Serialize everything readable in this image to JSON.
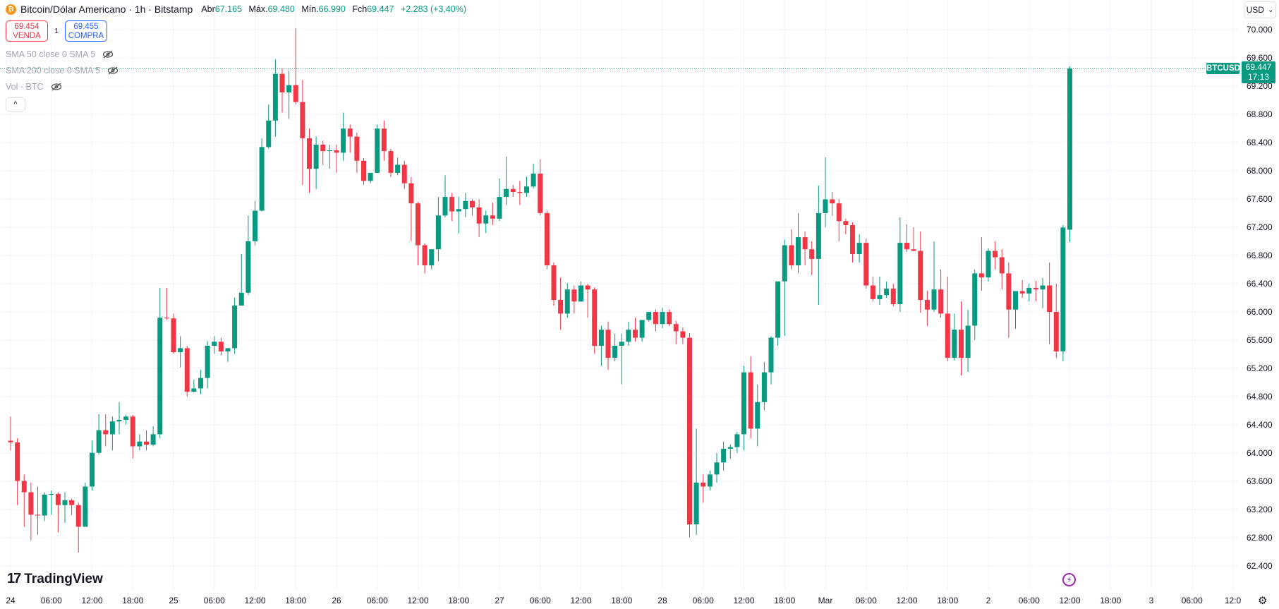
{
  "header": {
    "title": "Bitcoin/Dólar Americano · 1h · Bitstamp",
    "coin_glyph": "₿",
    "open_label": "Abr",
    "open": "67.165",
    "high_label": "Máx.",
    "high": "69.480",
    "low_label": "Mín.",
    "low": "66.990",
    "close_label": "Fch",
    "close": "69.447",
    "change": "+2.283 (+3,40%)"
  },
  "trade": {
    "sell_price": "69.454",
    "sell_label": "VENDA",
    "spread": "1",
    "buy_price": "69.455",
    "buy_label": "COMPRA"
  },
  "indicators": [
    {
      "label": "SMA 50 close 0 SMA 5",
      "icon": "eye-off-icon"
    },
    {
      "label": "SMA 200 close 0 SMA 5",
      "icon": "eye-off-icon"
    },
    {
      "label": "Vol · BTC",
      "icon": "eye-off-icon"
    }
  ],
  "collapse_glyph": "^",
  "currency": {
    "value": "USD",
    "chevron": "⌄"
  },
  "last_price": {
    "symbol": "BTCUSD",
    "price": "69.447",
    "countdown": "17:13"
  },
  "branding": {
    "logo_mark": "17",
    "logo_text": "TradingView"
  },
  "colors": {
    "up": "#089981",
    "down": "#f23645",
    "grid": "#f0f3fa",
    "accent": "#9c27b0"
  },
  "chart_data": {
    "type": "candlestick",
    "interval": "1h",
    "ylim": [
      62200,
      70200
    ],
    "grid": true,
    "y_ticks": [
      70000,
      69600,
      69200,
      68800,
      68400,
      68000,
      67600,
      67200,
      66800,
      66400,
      66000,
      65600,
      65200,
      64800,
      64400,
      64000,
      63600,
      63200,
      62800,
      62400
    ],
    "y_tick_labels": [
      "70.000",
      "69.600",
      "69.200",
      "68.800",
      "68.400",
      "68.000",
      "67.600",
      "67.200",
      "66.800",
      "66.400",
      "66.000",
      "65.600",
      "65.200",
      "64.800",
      "64.400",
      "64.000",
      "63.600",
      "63.200",
      "62.800",
      "62.400"
    ],
    "x_tick_labels": [
      "24",
      "06:00",
      "12:00",
      "18:00",
      "25",
      "06:00",
      "12:00",
      "18:00",
      "26",
      "06:00",
      "12:00",
      "18:00",
      "27",
      "06:00",
      "12:00",
      "18:00",
      "28",
      "06:00",
      "12:00",
      "18:00",
      "Mar",
      "06:00",
      "12:00",
      "18:00",
      "2",
      "06:00",
      "12:00",
      "18:00",
      "3",
      "06:00",
      "12:0"
    ],
    "last_price": 69447,
    "candles_ohlc": [
      [
        64175,
        64517,
        64038,
        64152
      ],
      [
        64152,
        64209,
        63263,
        63605
      ],
      [
        63605,
        63696,
        62955,
        63445
      ],
      [
        63445,
        63582,
        62761,
        63126
      ],
      [
        63126,
        63525,
        62841,
        63115
      ],
      [
        63115,
        63445,
        63035,
        63411
      ],
      [
        63411,
        63468,
        63126,
        63420
      ],
      [
        63420,
        63445,
        62875,
        63263
      ],
      [
        63263,
        63445,
        63012,
        63331
      ],
      [
        63331,
        63354,
        63126,
        63263
      ],
      [
        63263,
        63297,
        62590,
        62955
      ],
      [
        62955,
        63582,
        62955,
        63525
      ],
      [
        63525,
        64175,
        63468,
        64004
      ],
      [
        64004,
        64551,
        63981,
        64323
      ],
      [
        64323,
        64551,
        64095,
        64266
      ],
      [
        64266,
        64517,
        64038,
        64448
      ],
      [
        64448,
        64722,
        64266,
        64471
      ],
      [
        64471,
        64540,
        64403,
        64517
      ],
      [
        64517,
        64540,
        63924,
        64095
      ],
      [
        64095,
        64266,
        64038,
        64163
      ],
      [
        64163,
        64323,
        64038,
        64118
      ],
      [
        64118,
        64380,
        64095,
        64266
      ],
      [
        64266,
        66341,
        64209,
        65919
      ],
      [
        65919,
        66341,
        65885,
        65908
      ],
      [
        65908,
        65976,
        65406,
        65429
      ],
      [
        65429,
        65657,
        65212,
        65486
      ],
      [
        65486,
        65520,
        64800,
        64870
      ],
      [
        64870,
        65041,
        64860,
        64916
      ],
      [
        64916,
        65178,
        64836,
        65064
      ],
      [
        65064,
        65588,
        64916,
        65520
      ],
      [
        65520,
        65657,
        65406,
        65577
      ],
      [
        65577,
        65634,
        65383,
        65440
      ],
      [
        65440,
        65486,
        65292,
        65486
      ],
      [
        65486,
        66204,
        65406,
        66090
      ],
      [
        66090,
        66820,
        66090,
        66272
      ],
      [
        66272,
        67367,
        66238,
        67002
      ],
      [
        67002,
        67572,
        66945,
        67435
      ],
      [
        67435,
        68461,
        67424,
        68336
      ],
      [
        68336,
        68940,
        68313,
        68712
      ],
      [
        68712,
        69578,
        68484,
        69373
      ],
      [
        69373,
        69453,
        68826,
        69111
      ],
      [
        69111,
        69419,
        68735,
        69214
      ],
      [
        69214,
        70020,
        68940,
        68974
      ],
      [
        68974,
        69282,
        67800,
        68461
      ],
      [
        68461,
        68598,
        67686,
        68028
      ],
      [
        68028,
        68484,
        67743,
        68370
      ],
      [
        68370,
        68427,
        68085,
        68279
      ],
      [
        68279,
        68370,
        68028,
        68290
      ],
      [
        68290,
        68370,
        67971,
        68256
      ],
      [
        68256,
        68826,
        68142,
        68598
      ],
      [
        68598,
        68655,
        68256,
        68484
      ],
      [
        68484,
        68541,
        67971,
        68142
      ],
      [
        68142,
        68179,
        67800,
        67857
      ],
      [
        67857,
        67937,
        67823,
        67971
      ],
      [
        67971,
        68655,
        67971,
        68598
      ],
      [
        68598,
        68712,
        68142,
        68279
      ],
      [
        68279,
        68313,
        67914,
        67971
      ],
      [
        67971,
        68188,
        67937,
        68085
      ],
      [
        68085,
        68142,
        67743,
        67823
      ],
      [
        67823,
        67914,
        67002,
        67538
      ],
      [
        67538,
        67560,
        66660,
        66945
      ],
      [
        66945,
        66970,
        66546,
        66660
      ],
      [
        66660,
        66888,
        66603,
        66888
      ],
      [
        66888,
        67629,
        66717,
        67367
      ],
      [
        67367,
        67937,
        67340,
        67629
      ],
      [
        67629,
        67686,
        67287,
        67424
      ],
      [
        67424,
        67629,
        67116,
        67458
      ],
      [
        67458,
        67686,
        67344,
        67572
      ],
      [
        67572,
        67595,
        67367,
        67481
      ],
      [
        67481,
        67595,
        67059,
        67253
      ],
      [
        67253,
        67435,
        67116,
        67367
      ],
      [
        67367,
        67549,
        67230,
        67321
      ],
      [
        67321,
        67891,
        67287,
        67629
      ],
      [
        67629,
        68199,
        67515,
        67743
      ],
      [
        67743,
        67800,
        67630,
        67700
      ],
      [
        67700,
        67857,
        67515,
        67686
      ],
      [
        67686,
        67914,
        67630,
        67777
      ],
      [
        67777,
        68100,
        67750,
        67960
      ],
      [
        67960,
        68165,
        67367,
        67401
      ],
      [
        67401,
        67435,
        66603,
        66660
      ],
      [
        66660,
        66700,
        66090,
        66170
      ],
      [
        66170,
        66489,
        65748,
        65976
      ],
      [
        65976,
        66409,
        65919,
        66318
      ],
      [
        66318,
        66375,
        65976,
        66147
      ],
      [
        66147,
        66432,
        66147,
        66375
      ],
      [
        66375,
        66400,
        65919,
        66318
      ],
      [
        66318,
        66350,
        65406,
        65520
      ],
      [
        65520,
        65805,
        65235,
        65748
      ],
      [
        65748,
        65862,
        65178,
        65349
      ],
      [
        65349,
        65691,
        65300,
        65520
      ],
      [
        65520,
        65691,
        64973,
        65577
      ],
      [
        65577,
        65862,
        65520,
        65748
      ],
      [
        65748,
        65919,
        65577,
        65634
      ],
      [
        65634,
        65885,
        65577,
        65885
      ],
      [
        65885,
        66000,
        65862,
        65999
      ],
      [
        65999,
        66033,
        65725,
        65828
      ],
      [
        65828,
        66056,
        65771,
        65999
      ],
      [
        65999,
        66033,
        65800,
        65828
      ],
      [
        65828,
        65870,
        65543,
        65725
      ],
      [
        65725,
        65780,
        65543,
        65634
      ],
      [
        65634,
        65700,
        62807,
        62989
      ],
      [
        62989,
        64346,
        62840,
        63582
      ],
      [
        63582,
        63696,
        63297,
        63525
      ],
      [
        63525,
        63753,
        63468,
        63696
      ],
      [
        63696,
        64000,
        63582,
        63867
      ],
      [
        63867,
        64163,
        63753,
        64061
      ],
      [
        64061,
        64120,
        63924,
        64084
      ],
      [
        64084,
        64300,
        64000,
        64266
      ],
      [
        64266,
        65235,
        64038,
        65144
      ],
      [
        65144,
        65372,
        64209,
        64346
      ],
      [
        64346,
        64973,
        64095,
        64722
      ],
      [
        64722,
        65292,
        64608,
        65144
      ],
      [
        65144,
        65657,
        64973,
        65634
      ],
      [
        65634,
        66432,
        65520,
        66432
      ],
      [
        66432,
        67025,
        65660,
        66945
      ],
      [
        66945,
        67173,
        66603,
        66660
      ],
      [
        66660,
        67401,
        66546,
        67059
      ],
      [
        67059,
        67139,
        66660,
        66888
      ],
      [
        66888,
        67002,
        66523,
        66751
      ],
      [
        66751,
        67790,
        66100,
        67401
      ],
      [
        67401,
        68190,
        67200,
        67595
      ],
      [
        67595,
        67700,
        67360,
        67538
      ],
      [
        67538,
        67600,
        67000,
        67287
      ],
      [
        67287,
        67320,
        67100,
        67230
      ],
      [
        67230,
        67270,
        66700,
        66820
      ],
      [
        66820,
        67100,
        66700,
        66979
      ],
      [
        66979,
        67040,
        66330,
        66375
      ],
      [
        66375,
        66500,
        66150,
        66181
      ],
      [
        66181,
        66500,
        66100,
        66238
      ],
      [
        66238,
        66430,
        66200,
        66330
      ],
      [
        66330,
        66400,
        66080,
        66110
      ],
      [
        66110,
        67340,
        66000,
        66979
      ],
      [
        66979,
        67240,
        66850,
        66888
      ],
      [
        66888,
        67200,
        66860,
        66865
      ],
      [
        66865,
        67140,
        65990,
        66170
      ],
      [
        66170,
        66300,
        65800,
        66033
      ],
      [
        66033,
        67000,
        66000,
        66318
      ],
      [
        66318,
        66600,
        65919,
        65976
      ],
      [
        65976,
        66500,
        65300,
        65349
      ],
      [
        65349,
        65976,
        65310,
        65748
      ],
      [
        65748,
        66150,
        65100,
        65349
      ],
      [
        65349,
        66030,
        65150,
        65805
      ],
      [
        65805,
        66600,
        65600,
        66546
      ],
      [
        66546,
        67059,
        66300,
        66489
      ],
      [
        66489,
        66900,
        66430,
        66865
      ],
      [
        66865,
        67000,
        66600,
        66774
      ],
      [
        66774,
        66888,
        66318,
        66546
      ],
      [
        66546,
        66700,
        65634,
        66033
      ],
      [
        66033,
        66290,
        65760,
        66295
      ],
      [
        66295,
        66450,
        66200,
        66261
      ],
      [
        66261,
        66400,
        66150,
        66341
      ],
      [
        66341,
        66440,
        66150,
        66318
      ],
      [
        66318,
        66480,
        66050,
        66375
      ],
      [
        66375,
        66700,
        65540,
        65999
      ],
      [
        65999,
        66400,
        65350,
        65440
      ],
      [
        65440,
        67230,
        65300,
        67196
      ],
      [
        67165,
        69480,
        66990,
        69447
      ]
    ]
  }
}
